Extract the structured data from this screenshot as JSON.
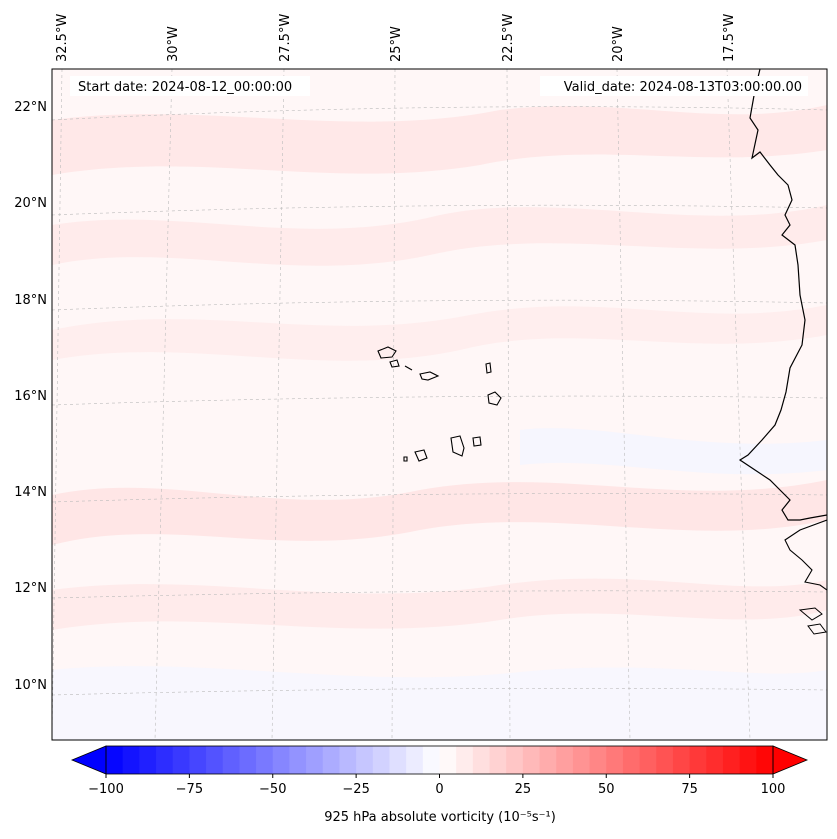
{
  "map": {
    "start_date": "Start date: 2024-08-12_00:00:00",
    "valid_date": "Valid_date: 2024-08-13T03:00:00.00",
    "lon_labels": [
      "32.5°W",
      "30°W",
      "27.5°W",
      "25°W",
      "22.5°W",
      "20°W",
      "17.5°W"
    ],
    "lat_labels": [
      "22°N",
      "20°N",
      "18°N",
      "16°N",
      "14°N",
      "12°N",
      "10°N"
    ]
  },
  "colorbar": {
    "label": "925 hPa absolute vorticity (10⁻⁵s⁻¹)",
    "ticks": [
      "−100",
      "−75",
      "−50",
      "−25",
      "0",
      "25",
      "50",
      "75",
      "100"
    ],
    "range": [
      -100,
      100
    ],
    "step": 5,
    "colors": {
      "negative": "#0000ff",
      "zero": "#ffffff",
      "positive": "#ff0000"
    }
  }
}
